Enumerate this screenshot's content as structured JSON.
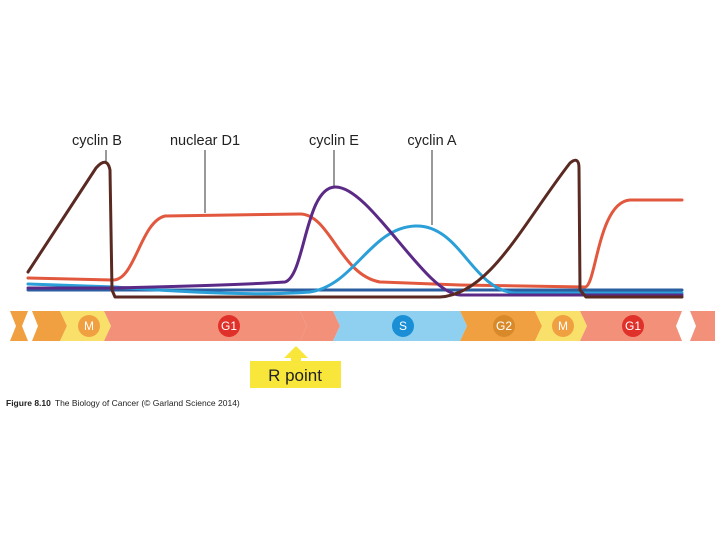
{
  "labels": {
    "cyclin_b": "cyclin B",
    "nuclear_d1": "nuclear D1",
    "cyclin_e": "cyclin E",
    "cyclin_a": "cyclin A"
  },
  "phases": {
    "m1": "M",
    "g1a": "G1",
    "s": "S",
    "g2": "G2",
    "m2": "M",
    "g1b": "G1"
  },
  "restriction_point": "R point",
  "caption": {
    "figure": "Figure 8.10",
    "text": "The Biology of Cancer (© Garland Science 2014)"
  },
  "colors": {
    "cyclin_b": "#5a2a22",
    "nuclear_d1": "#e2583e",
    "cyclin_e": "#5b2a86",
    "cyclin_a": "#2a9fd8",
    "baseline": "#2a5ea0",
    "m_phase": "#f8e06a",
    "g1_phase": "#f2907a",
    "s_phase": "#8fd0f0",
    "g2_phase": "#f0a040",
    "r_point": "#f8e63a"
  },
  "icons": [
    "up-arrow-icon",
    "break-mark-icon"
  ]
}
